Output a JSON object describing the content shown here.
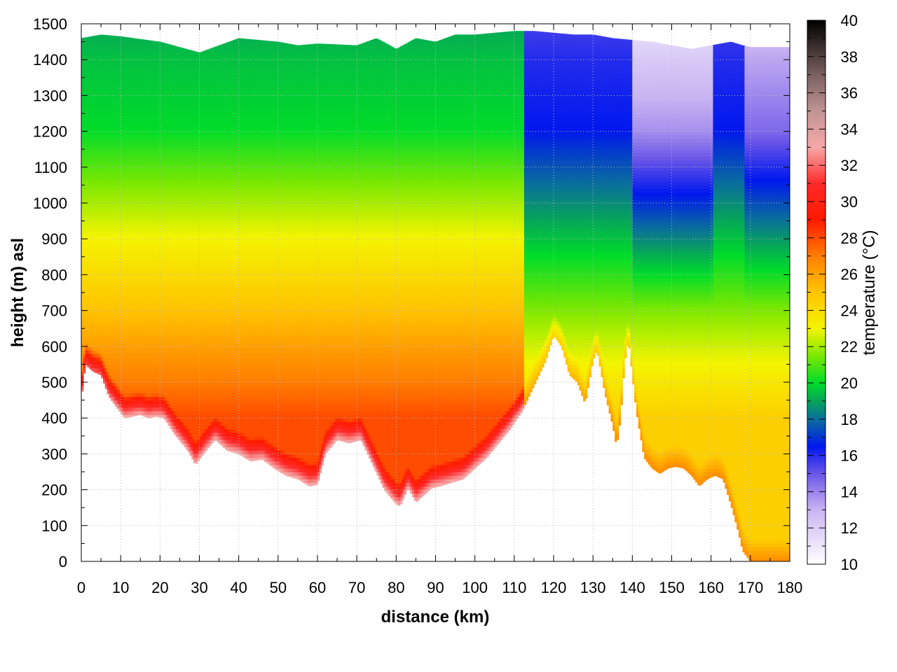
{
  "chart_data": {
    "type": "heatmap",
    "xlabel": "distance (km)",
    "ylabel": "height (m) asl",
    "colorbar_label": "temperature (°C)",
    "xlim": [
      0,
      180
    ],
    "ylim": [
      0,
      1500
    ],
    "clim": [
      10,
      40
    ],
    "x_ticks": [
      0,
      10,
      20,
      30,
      40,
      50,
      60,
      70,
      80,
      90,
      100,
      110,
      120,
      130,
      140,
      150,
      160,
      170,
      180
    ],
    "y_ticks": [
      0,
      100,
      200,
      300,
      400,
      500,
      600,
      700,
      800,
      900,
      1000,
      1100,
      1200,
      1300,
      1400,
      1500
    ],
    "colorbar_ticks": [
      10,
      12,
      14,
      16,
      18,
      20,
      22,
      24,
      26,
      28,
      30,
      32,
      34,
      36,
      38,
      40
    ],
    "grid": true,
    "colormap": [
      {
        "t": 10,
        "color": "#ffffff"
      },
      {
        "t": 13,
        "color": "#c9b4f2"
      },
      {
        "t": 15,
        "color": "#6a55e8"
      },
      {
        "t": 16.5,
        "color": "#0018ee"
      },
      {
        "t": 18,
        "color": "#0a6e9c"
      },
      {
        "t": 19,
        "color": "#06a55a"
      },
      {
        "t": 20,
        "color": "#00dc2a"
      },
      {
        "t": 21.5,
        "color": "#7ce800"
      },
      {
        "t": 23,
        "color": "#f4f400"
      },
      {
        "t": 25,
        "color": "#ffc400"
      },
      {
        "t": 27,
        "color": "#ff7e00"
      },
      {
        "t": 29,
        "color": "#ff1a00"
      },
      {
        "t": 31,
        "color": "#ff2a2a"
      },
      {
        "t": 33,
        "color": "#f6a8a8"
      },
      {
        "t": 35,
        "color": "#c09494"
      },
      {
        "t": 37,
        "color": "#7a6060"
      },
      {
        "t": 40,
        "color": "#000000"
      }
    ],
    "terrain_profile": {
      "x": [
        0,
        1,
        3,
        5,
        7,
        9,
        11,
        13,
        15,
        17,
        19,
        21,
        24,
        27,
        29,
        31,
        34,
        37,
        40,
        43,
        46,
        49,
        52,
        55,
        58,
        60,
        62,
        65,
        68,
        71,
        74,
        77,
        80,
        81,
        83,
        85,
        87,
        89,
        91,
        94,
        97,
        100,
        103,
        106,
        109,
        112,
        115,
        118,
        120,
        122,
        124,
        126,
        128,
        130,
        131,
        133,
        135,
        136,
        137,
        138,
        139,
        141,
        143,
        145,
        147,
        149,
        151,
        153,
        155,
        157,
        159,
        161,
        163,
        165,
        167,
        168,
        170,
        180
      ],
      "y": [
        450,
        550,
        530,
        520,
        460,
        430,
        400,
        405,
        410,
        400,
        405,
        400,
        350,
        310,
        270,
        300,
        340,
        310,
        300,
        280,
        285,
        260,
        240,
        230,
        210,
        215,
        300,
        340,
        330,
        340,
        270,
        200,
        160,
        155,
        205,
        165,
        185,
        205,
        210,
        220,
        230,
        260,
        290,
        330,
        370,
        420,
        490,
        560,
        630,
        600,
        520,
        500,
        440,
        560,
        590,
        470,
        380,
        320,
        400,
        550,
        620,
        420,
        290,
        260,
        245,
        260,
        265,
        260,
        240,
        210,
        230,
        240,
        230,
        160,
        80,
        30,
        0,
        0
      ]
    },
    "temperature_profile_points": [
      {
        "height": 0,
        "temp": 28
      },
      {
        "height": 400,
        "temp": 28
      },
      {
        "height": 700,
        "temp": 25
      },
      {
        "height": 1000,
        "temp": 22
      },
      {
        "height": 1200,
        "temp": 20
      },
      {
        "height": 1400,
        "temp": 19.5
      },
      {
        "height": 1500,
        "temp": 19
      }
    ],
    "data_top_profile": {
      "x": [
        0,
        5,
        10,
        20,
        30,
        40,
        50,
        55,
        60,
        70,
        75,
        80,
        85,
        90,
        95,
        100,
        105,
        110,
        115,
        120,
        125,
        130,
        135,
        140,
        145,
        150,
        155,
        160,
        165,
        168,
        170,
        180
      ],
      "y": [
        1460,
        1470,
        1465,
        1450,
        1420,
        1460,
        1450,
        1440,
        1445,
        1440,
        1460,
        1430,
        1460,
        1450,
        1470,
        1470,
        1475,
        1480,
        1480,
        1475,
        1470,
        1470,
        1460,
        1455,
        1450,
        1440,
        1430,
        1440,
        1450,
        1440,
        1435,
        1435
      ]
    },
    "dry_zone": {
      "x_start": 140,
      "x_end": 160
    }
  }
}
